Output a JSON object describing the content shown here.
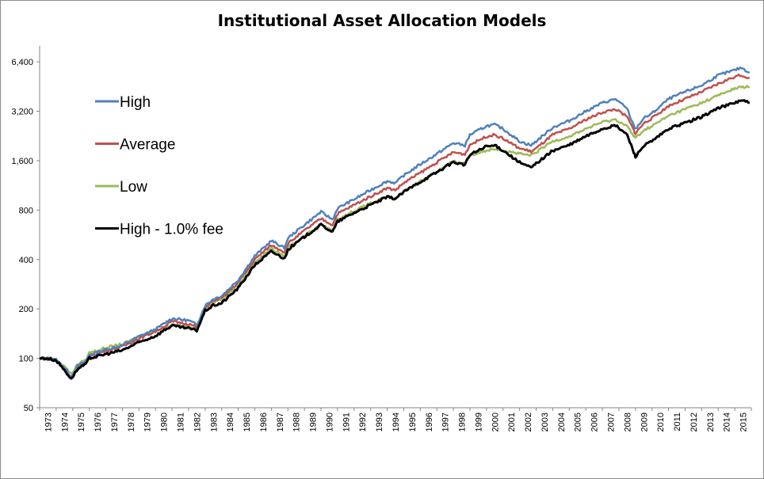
{
  "chart_data": {
    "type": "line",
    "title": "Institutional Asset Allocation Models",
    "xlabel": "",
    "ylabel": "",
    "y_scale": "log",
    "ylim": [
      50,
      8000
    ],
    "xlim": [
      1973,
      2016
    ],
    "y_ticks": [
      50,
      100,
      200,
      400,
      800,
      1600,
      3200,
      6400
    ],
    "y_tick_labels": [
      "50",
      "100",
      "200",
      "400",
      "800",
      "1,600",
      "3,200",
      "6,400"
    ],
    "x_tick_labels": [
      "1973",
      "1974",
      "1975",
      "1976",
      "1977",
      "1978",
      "1979",
      "1980",
      "1981",
      "1982",
      "1983",
      "1984",
      "1985",
      "1986",
      "1987",
      "1988",
      "1989",
      "1990",
      "1991",
      "1992",
      "1993",
      "1994",
      "1995",
      "1996",
      "1997",
      "1998",
      "1999",
      "2000",
      "2001",
      "2002",
      "2003",
      "2004",
      "2005",
      "2006",
      "2007",
      "2008",
      "2009",
      "2010",
      "2011",
      "2012",
      "2013",
      "2014",
      "2015"
    ],
    "grid": false,
    "legend_placement": "top-left",
    "series": [
      {
        "name": "High",
        "color": "#4f81bd",
        "points": [
          [
            1973,
            100
          ],
          [
            1973.5,
            100
          ],
          [
            1974,
            98
          ],
          [
            1974.5,
            88
          ],
          [
            1974.9,
            77
          ],
          [
            1975.3,
            90
          ],
          [
            1975.8,
            96
          ],
          [
            1976,
            105
          ],
          [
            1977,
            113
          ],
          [
            1978,
            120
          ],
          [
            1979,
            136
          ],
          [
            1980,
            150
          ],
          [
            1980.6,
            165
          ],
          [
            1981,
            175
          ],
          [
            1982,
            170
          ],
          [
            1982.5,
            160
          ],
          [
            1983,
            210
          ],
          [
            1983.5,
            230
          ],
          [
            1984,
            240
          ],
          [
            1985,
            300
          ],
          [
            1986,
            420
          ],
          [
            1987,
            520
          ],
          [
            1987.8,
            470
          ],
          [
            1988,
            540
          ],
          [
            1989,
            650
          ],
          [
            1990,
            780
          ],
          [
            1990.7,
            700
          ],
          [
            1991,
            820
          ],
          [
            1992,
            930
          ],
          [
            1993,
            1060
          ],
          [
            1994,
            1200
          ],
          [
            1994.5,
            1170
          ],
          [
            1995,
            1300
          ],
          [
            1996,
            1520
          ],
          [
            1997,
            1760
          ],
          [
            1998,
            2050
          ],
          [
            1998.7,
            1980
          ],
          [
            1999,
            2300
          ],
          [
            2000,
            2600
          ],
          [
            2000.5,
            2650
          ],
          [
            2001,
            2500
          ],
          [
            2002,
            2100
          ],
          [
            2002.7,
            1980
          ],
          [
            2003,
            2100
          ],
          [
            2004,
            2550
          ],
          [
            2005,
            2800
          ],
          [
            2006,
            3200
          ],
          [
            2007,
            3600
          ],
          [
            2007.8,
            3800
          ],
          [
            2008.5,
            3300
          ],
          [
            2008.9,
            2600
          ],
          [
            2009,
            2500
          ],
          [
            2009.5,
            2900
          ],
          [
            2010,
            3100
          ],
          [
            2011,
            3800
          ],
          [
            2012,
            4200
          ],
          [
            2013,
            4600
          ],
          [
            2014,
            5300
          ],
          [
            2015,
            5700
          ],
          [
            2015.4,
            5900
          ],
          [
            2015.9,
            5500
          ]
        ]
      },
      {
        "name": "Average",
        "color": "#c0504d",
        "points": [
          [
            1973,
            100
          ],
          [
            1973.5,
            99
          ],
          [
            1974,
            97
          ],
          [
            1974.5,
            86
          ],
          [
            1974.9,
            76
          ],
          [
            1975.3,
            88
          ],
          [
            1975.8,
            94
          ],
          [
            1976,
            103
          ],
          [
            1977,
            111
          ],
          [
            1978,
            118
          ],
          [
            1979,
            132
          ],
          [
            1980,
            146
          ],
          [
            1980.6,
            158
          ],
          [
            1981,
            168
          ],
          [
            1982,
            162
          ],
          [
            1982.5,
            155
          ],
          [
            1983,
            205
          ],
          [
            1983.5,
            225
          ],
          [
            1984,
            232
          ],
          [
            1985,
            290
          ],
          [
            1986,
            400
          ],
          [
            1987,
            490
          ],
          [
            1987.8,
            445
          ],
          [
            1988,
            500
          ],
          [
            1989,
            600
          ],
          [
            1990,
            710
          ],
          [
            1990.7,
            650
          ],
          [
            1991,
            760
          ],
          [
            1992,
            860
          ],
          [
            1993,
            970
          ],
          [
            1994,
            1090
          ],
          [
            1994.5,
            1060
          ],
          [
            1995,
            1170
          ],
          [
            1996,
            1350
          ],
          [
            1997,
            1560
          ],
          [
            1998,
            1800
          ],
          [
            1998.7,
            1750
          ],
          [
            1999,
            2000
          ],
          [
            2000,
            2250
          ],
          [
            2000.5,
            2300
          ],
          [
            2001,
            2180
          ],
          [
            2002,
            1900
          ],
          [
            2002.7,
            1820
          ],
          [
            2003,
            1900
          ],
          [
            2004,
            2300
          ],
          [
            2005,
            2500
          ],
          [
            2006,
            2850
          ],
          [
            2007,
            3150
          ],
          [
            2007.8,
            3300
          ],
          [
            2008.5,
            2950
          ],
          [
            2008.9,
            2450
          ],
          [
            2009,
            2350
          ],
          [
            2009.5,
            2700
          ],
          [
            2010,
            2900
          ],
          [
            2011,
            3450
          ],
          [
            2012,
            3800
          ],
          [
            2013,
            4200
          ],
          [
            2014,
            4700
          ],
          [
            2015,
            5200
          ],
          [
            2015.4,
            5300
          ],
          [
            2015.9,
            5100
          ]
        ]
      },
      {
        "name": "Low",
        "color": "#9bbb59",
        "points": [
          [
            1973,
            100
          ],
          [
            1973.5,
            100
          ],
          [
            1974,
            98
          ],
          [
            1974.5,
            90
          ],
          [
            1974.9,
            80
          ],
          [
            1975.3,
            92
          ],
          [
            1975.8,
            98
          ],
          [
            1976,
            108
          ],
          [
            1977,
            116
          ],
          [
            1978,
            122
          ],
          [
            1979,
            135
          ],
          [
            1980,
            148
          ],
          [
            1980.6,
            155
          ],
          [
            1981,
            160
          ],
          [
            1982,
            155
          ],
          [
            1982.5,
            150
          ],
          [
            1983,
            200
          ],
          [
            1983.5,
            220
          ],
          [
            1984,
            228
          ],
          [
            1985,
            280
          ],
          [
            1986,
            385
          ],
          [
            1987,
            465
          ],
          [
            1987.8,
            420
          ],
          [
            1988,
            470
          ],
          [
            1989,
            560
          ],
          [
            1990,
            650
          ],
          [
            1990.7,
            600
          ],
          [
            1991,
            700
          ],
          [
            1992,
            790
          ],
          [
            1993,
            880
          ],
          [
            1994,
            960
          ],
          [
            1994.5,
            940
          ],
          [
            1995,
            1040
          ],
          [
            1996,
            1200
          ],
          [
            1997,
            1380
          ],
          [
            1998,
            1580
          ],
          [
            1998.7,
            1540
          ],
          [
            1999,
            1720
          ],
          [
            2000,
            1850
          ],
          [
            2000.5,
            1900
          ],
          [
            2001,
            1850
          ],
          [
            2002,
            1760
          ],
          [
            2002.7,
            1720
          ],
          [
            2003,
            1800
          ],
          [
            2004,
            2100
          ],
          [
            2005,
            2250
          ],
          [
            2006,
            2500
          ],
          [
            2007,
            2750
          ],
          [
            2007.8,
            2850
          ],
          [
            2008.5,
            2600
          ],
          [
            2008.9,
            2250
          ],
          [
            2009,
            2200
          ],
          [
            2009.5,
            2450
          ],
          [
            2010,
            2600
          ],
          [
            2011,
            3000
          ],
          [
            2012,
            3300
          ],
          [
            2013,
            3600
          ],
          [
            2014,
            4000
          ],
          [
            2015,
            4400
          ],
          [
            2015.4,
            4500
          ],
          [
            2015.9,
            4500
          ]
        ]
      },
      {
        "name": "High - 1.0% fee",
        "color": "#000000",
        "points": [
          [
            1973,
            100
          ],
          [
            1973.5,
            100
          ],
          [
            1974,
            97
          ],
          [
            1974.5,
            85
          ],
          [
            1974.9,
            75
          ],
          [
            1975.3,
            86
          ],
          [
            1975.8,
            92
          ],
          [
            1976,
            100
          ],
          [
            1977,
            106
          ],
          [
            1978,
            112
          ],
          [
            1979,
            125
          ],
          [
            1980,
            137
          ],
          [
            1980.6,
            150
          ],
          [
            1981,
            158
          ],
          [
            1982,
            152
          ],
          [
            1982.5,
            148
          ],
          [
            1983,
            195
          ],
          [
            1983.5,
            210
          ],
          [
            1984,
            217
          ],
          [
            1985,
            268
          ],
          [
            1986,
            370
          ],
          [
            1987,
            448
          ],
          [
            1987.8,
            405
          ],
          [
            1988,
            460
          ],
          [
            1989,
            550
          ],
          [
            1990,
            650
          ],
          [
            1990.7,
            590
          ],
          [
            1991,
            680
          ],
          [
            1992,
            770
          ],
          [
            1993,
            860
          ],
          [
            1994,
            960
          ],
          [
            1994.5,
            940
          ],
          [
            1995,
            1030
          ],
          [
            1996,
            1190
          ],
          [
            1997,
            1360
          ],
          [
            1998,
            1570
          ],
          [
            1998.7,
            1510
          ],
          [
            1999,
            1740
          ],
          [
            2000,
            1950
          ],
          [
            2000.5,
            1980
          ],
          [
            2001,
            1850
          ],
          [
            2002,
            1560
          ],
          [
            2002.7,
            1450
          ],
          [
            2003,
            1540
          ],
          [
            2004,
            1840
          ],
          [
            2005,
            1990
          ],
          [
            2006,
            2250
          ],
          [
            2007,
            2500
          ],
          [
            2007.8,
            2620
          ],
          [
            2008.5,
            2300
          ],
          [
            2008.9,
            1800
          ],
          [
            2009,
            1700
          ],
          [
            2009.5,
            1970
          ],
          [
            2010,
            2100
          ],
          [
            2011,
            2500
          ],
          [
            2012,
            2720
          ],
          [
            2013,
            2960
          ],
          [
            2014,
            3350
          ],
          [
            2015,
            3600
          ],
          [
            2015.4,
            3750
          ],
          [
            2015.9,
            3600
          ]
        ]
      }
    ]
  }
}
